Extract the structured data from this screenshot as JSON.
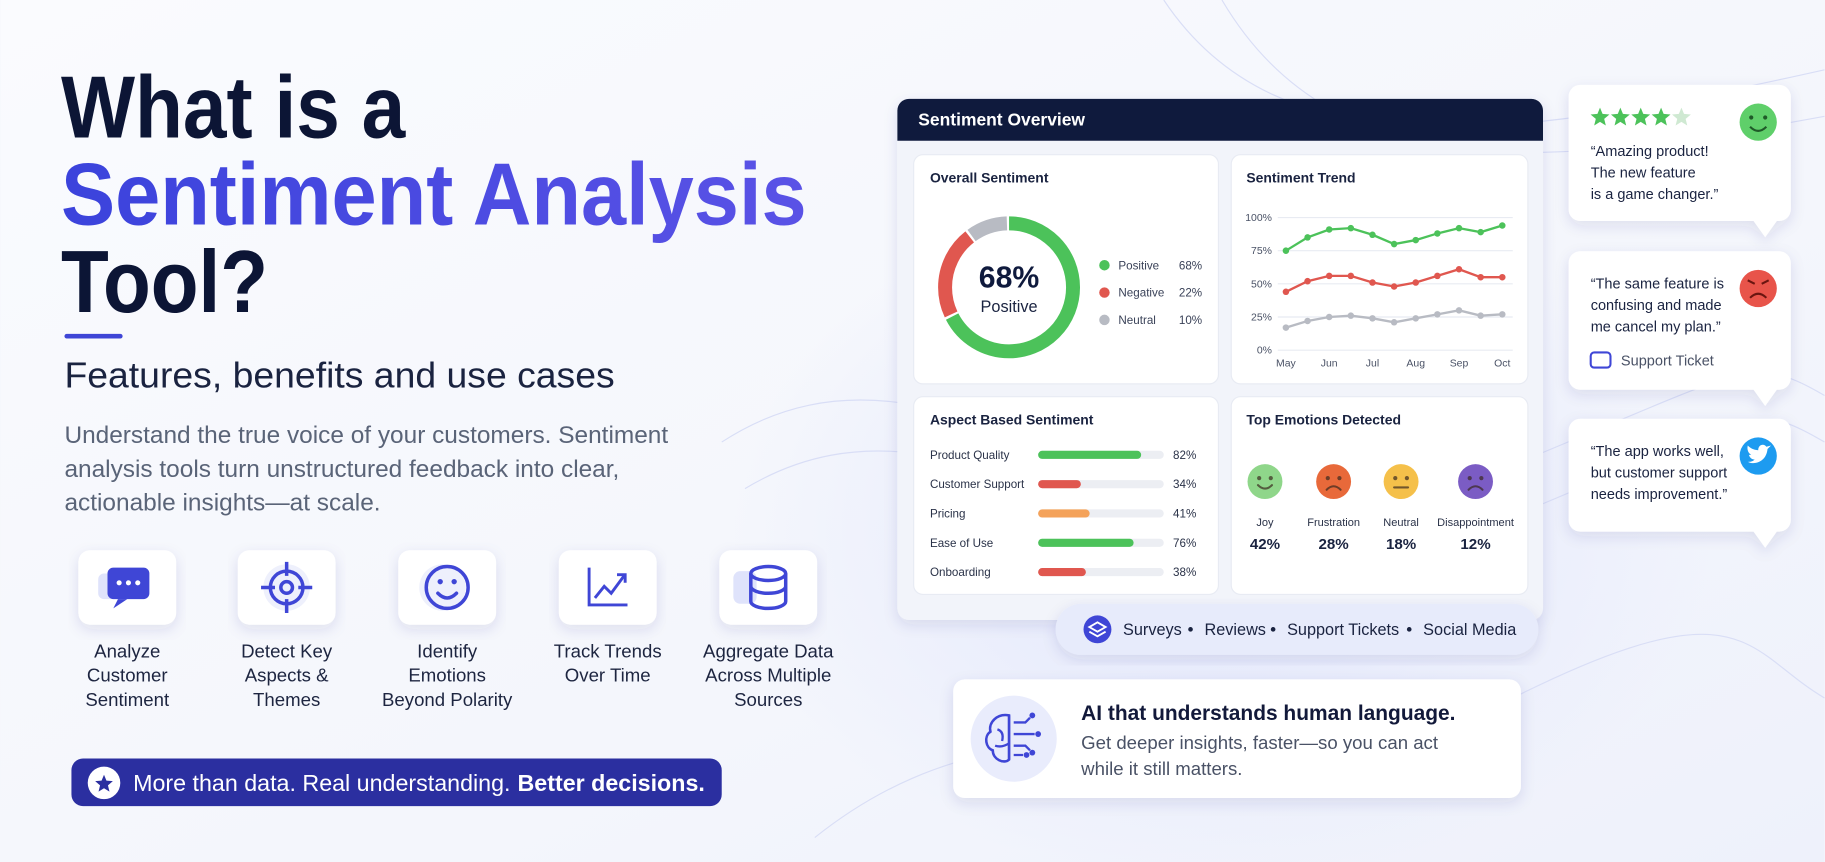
{
  "hero": {
    "title": [
      "What is a",
      "Sentiment Analysis",
      "Tool?"
    ],
    "subtitle": "Features, benefits and use cases",
    "description": [
      "Understand the true voice of your customers. Sentiment",
      "analysis tools turn unstructured feedback into clear,",
      "actionable insights—at scale."
    ]
  },
  "features": [
    [
      "Analyze",
      "Customer",
      "Sentiment"
    ],
    [
      "Detect Key",
      "Aspects &",
      "Themes"
    ],
    [
      "Identify",
      "Emotions",
      "Beyond Polarity"
    ],
    [
      "Track Trends",
      "Over Time"
    ],
    [
      "Aggregate Data",
      "Across Multiple",
      "Sources"
    ]
  ],
  "banner": {
    "text": "More than data. Real understanding.",
    "emphasis": "Better decisions."
  },
  "dashboard": {
    "title": "Sentiment Overview",
    "overall": {
      "title": "Overall Sentiment",
      "center_label": "Positive",
      "categories": [
        "Positive",
        "Negative",
        "Neutral"
      ],
      "values": [
        68,
        22,
        10
      ],
      "value_labels": [
        "68%",
        "22%",
        "10%"
      ],
      "colors": [
        "#4cc25a",
        "#e0574f",
        "#b8bbc3"
      ]
    },
    "trend": {
      "title": "Sentiment Trend",
      "categories": [
        "May",
        null,
        "Jun",
        null,
        "Jul",
        null,
        "Aug",
        null,
        "Sep",
        null,
        "Oct"
      ],
      "ylim": [
        0,
        100
      ],
      "yticks": [
        {
          "value": 0,
          "label": "0%"
        },
        {
          "value": 25,
          "label": "25%"
        },
        {
          "value": 50,
          "label": "50%"
        },
        {
          "value": 75,
          "label": "75%"
        },
        {
          "value": 100,
          "label": "100%"
        }
      ],
      "series": [
        {
          "color": "#4cc25a",
          "values": [
            75,
            85,
            91,
            92,
            87,
            80,
            83,
            88,
            92,
            89,
            94
          ]
        },
        {
          "color": "#e0574f",
          "values": [
            44,
            52,
            56,
            56,
            51,
            48,
            51,
            56,
            61,
            55,
            55
          ]
        },
        {
          "color": "#b8bbc3",
          "values": [
            17,
            22,
            25,
            26,
            24,
            21,
            24,
            27,
            30,
            26,
            27
          ]
        }
      ]
    },
    "aspects": {
      "title": "Aspect Based Sentiment",
      "categories": [
        "Product Quality",
        "Customer Support",
        "Pricing",
        "Ease of Use",
        "Onboarding"
      ],
      "values": [
        82,
        34,
        41,
        76,
        38
      ],
      "value_labels": [
        "82%",
        "34%",
        "41%",
        "76%",
        "38%"
      ],
      "colors": [
        "#4cc25a",
        "#e0574f",
        "#f4a25a",
        "#4cc25a",
        "#e0574f"
      ]
    },
    "emotions": {
      "title": "Top Emotions Detected",
      "items": [
        {
          "label": "Joy",
          "value": "42%",
          "color": "#8fd68a"
        },
        {
          "label": "Frustration",
          "value": "28%",
          "color": "#e8693a"
        },
        {
          "label": "Neutral",
          "value": "18%",
          "color": "#f5c04a"
        },
        {
          "label": "Disappointment",
          "value": "12%",
          "color": "#7b5cc4"
        }
      ]
    }
  },
  "sources": [
    "Surveys",
    "Reviews",
    "Support Tickets",
    "Social Media"
  ],
  "ai_card": {
    "title": "AI that understands human language.",
    "body": [
      "Get deeper insights, faster—so you can act",
      "while it still matters."
    ]
  },
  "reviews": [
    {
      "quote": [
        "“Amazing product!",
        "The new feature",
        "is a game changer.”"
      ]
    },
    {
      "quote": [
        "“The same feature is",
        "confusing and made",
        "me cancel my plan.”"
      ],
      "tag": "Support Ticket"
    },
    {
      "quote": [
        "“The app works well,",
        "but customer support",
        "needs improvement.”"
      ]
    }
  ]
}
